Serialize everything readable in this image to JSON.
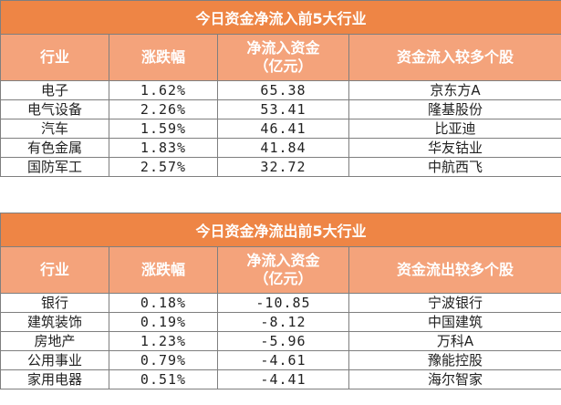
{
  "inflow": {
    "title": "今日资金净流入前5大行业",
    "headers": {
      "industry": "行业",
      "change": "涨跌幅",
      "amount_line1": "净流入资金",
      "amount_line2": "（亿元）",
      "stocks": "资金流入较多个股"
    },
    "rows": [
      {
        "industry": "电子",
        "change": "1.62%",
        "amount": "65.38",
        "stock": "京东方A"
      },
      {
        "industry": "电气设备",
        "change": "2.26%",
        "amount": "53.41",
        "stock": "隆基股份"
      },
      {
        "industry": "汽车",
        "change": "1.59%",
        "amount": "46.41",
        "stock": "比亚迪"
      },
      {
        "industry": "有色金属",
        "change": "1.83%",
        "amount": "41.84",
        "stock": "华友钴业"
      },
      {
        "industry": "国防军工",
        "change": "2.57%",
        "amount": "32.72",
        "stock": "中航西飞"
      }
    ]
  },
  "outflow": {
    "title": "今日资金净流出前5大行业",
    "headers": {
      "industry": "行业",
      "change": "涨跌幅",
      "amount_line1": "净流入资金",
      "amount_line2": "（亿元）",
      "stocks": "资金流出较多个股"
    },
    "rows": [
      {
        "industry": "银行",
        "change": "0.18%",
        "amount": "-10.85",
        "stock": "宁波银行"
      },
      {
        "industry": "建筑装饰",
        "change": "0.19%",
        "amount": "-8.12",
        "stock": "中国建筑"
      },
      {
        "industry": "房地产",
        "change": "1.23%",
        "amount": "-5.96",
        "stock": "万科A"
      },
      {
        "industry": "公用事业",
        "change": "0.79%",
        "amount": "-4.61",
        "stock": "豫能控股"
      },
      {
        "industry": "家用电器",
        "change": "0.51%",
        "amount": "-4.41",
        "stock": "海尔智家"
      }
    ]
  }
}
